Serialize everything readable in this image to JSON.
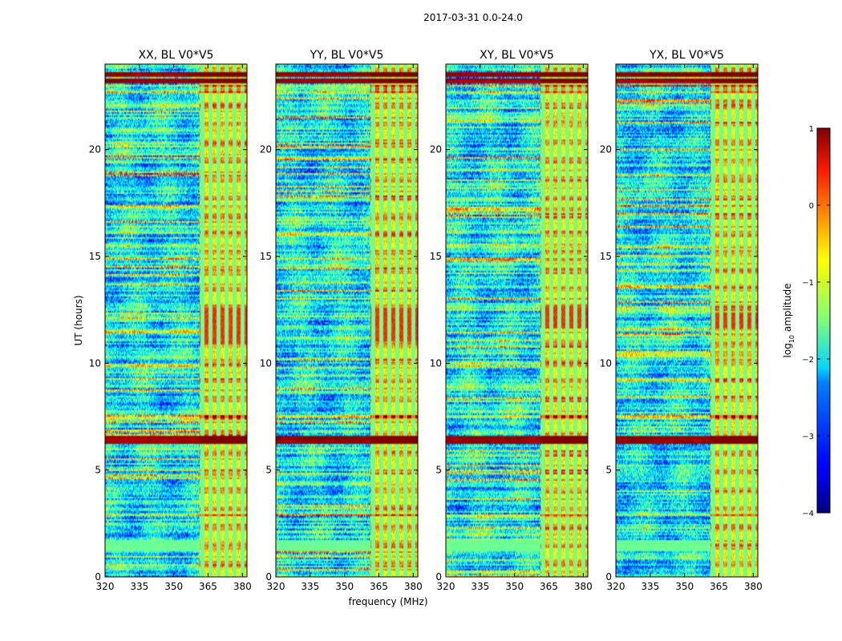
{
  "chart_data": {
    "type": "heatmap",
    "suptitle": "2017-03-31 0.0-24.0",
    "xlabel": "frequency (MHz)",
    "ylabel": "UT (hours)",
    "xlim": [
      320,
      382
    ],
    "ylim": [
      0,
      24
    ],
    "xticks": [
      320,
      335,
      350,
      365,
      380
    ],
    "yticks": [
      0,
      5,
      10,
      15,
      20
    ],
    "panels": [
      {
        "title": "XX, BL V0*V5",
        "band_hot_rows_min": 10.9,
        "band_hot_rows_max": 12.6
      },
      {
        "title": "YY, BL V0*V5",
        "band_hot_rows_min": 11.0,
        "band_hot_rows_max": 12.6
      },
      {
        "title": "XY, BL V0*V5",
        "band_hot_rows_min": 11.6,
        "band_hot_rows_max": 12.6
      },
      {
        "title": "YX, BL V0*V5",
        "band_hot_rows_min": 11.6,
        "band_hot_rows_max": 12.4
      }
    ],
    "features": {
      "rfi_band_mhz": [
        361,
        382
      ],
      "rfi_subchannels_mhz": [
        362.5,
        366,
        369.5,
        373,
        376.5,
        380
      ],
      "strong_hlines_ut": [
        6.35,
        6.5,
        23.2,
        23.5
      ],
      "medium_hlines_ut": [
        2.9,
        7.5,
        22.7,
        23.0
      ],
      "quiet_band_ut": [
        1.2,
        1.7
      ]
    },
    "colorbar": {
      "label": "log",
      "label_sub": "10",
      "label_rest": " amplitude",
      "range": [
        -4,
        1
      ],
      "ticks": [
        {
          "v": 1,
          "t": "1"
        },
        {
          "v": 0,
          "t": "0"
        },
        {
          "v": -1,
          "t": "−1"
        },
        {
          "v": -2,
          "t": "−2"
        },
        {
          "v": -3,
          "t": "−3"
        },
        {
          "v": -4,
          "t": "−4"
        }
      ],
      "colormap": "jet"
    }
  }
}
